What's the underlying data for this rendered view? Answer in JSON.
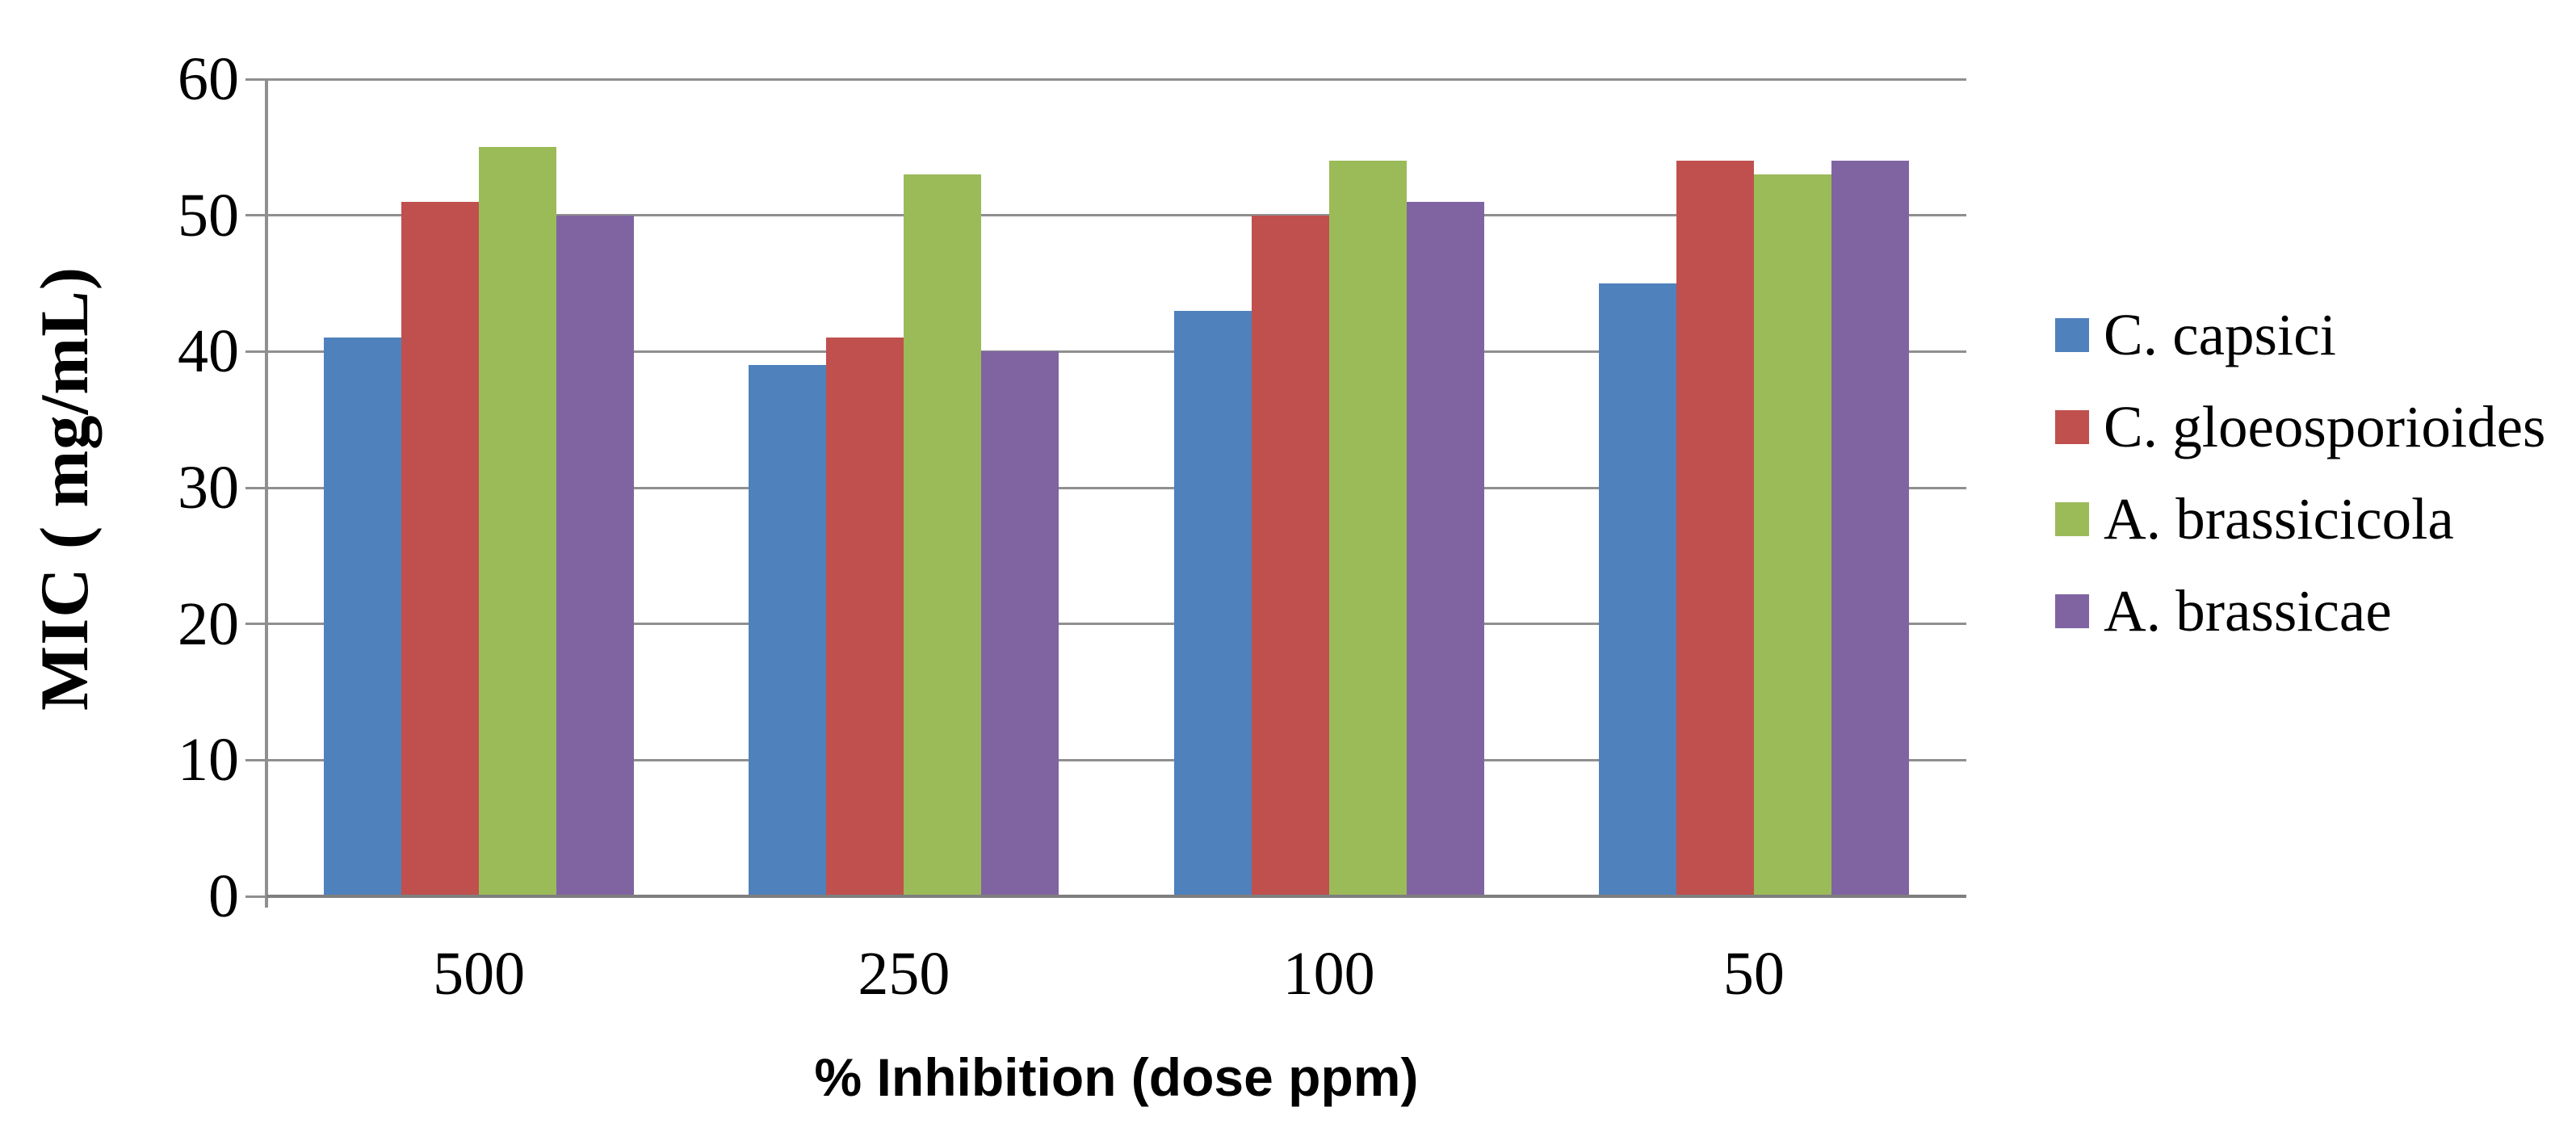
{
  "chart_data": {
    "type": "bar",
    "title": "",
    "xlabel": "% Inhibition (dose ppm)",
    "ylabel": "MIC ( mg/mL)",
    "categories": [
      "500",
      "250",
      "100",
      "50"
    ],
    "series": [
      {
        "name": "C. capsici",
        "color": "#4F81BD",
        "values": [
          41,
          39,
          43,
          45
        ]
      },
      {
        "name": "C. gloeosporioides",
        "color": "#C0504D",
        "values": [
          51,
          41,
          50,
          54
        ]
      },
      {
        "name": "A. brassicicola",
        "color": "#9BBB59",
        "values": [
          55,
          53,
          54,
          53
        ]
      },
      {
        "name": "A. brassicae",
        "color": "#8064A2",
        "values": [
          50,
          40,
          51,
          54
        ]
      }
    ],
    "ylim": [
      0,
      60
    ],
    "yticks": [
      0,
      10,
      20,
      30,
      40,
      50,
      60
    ],
    "grid": true,
    "legend_position": "right",
    "colors": {
      "gridline": "#8F8F8F",
      "axis": "#7F7F7F",
      "text": "#000000",
      "background": "#FFFFFF"
    }
  }
}
